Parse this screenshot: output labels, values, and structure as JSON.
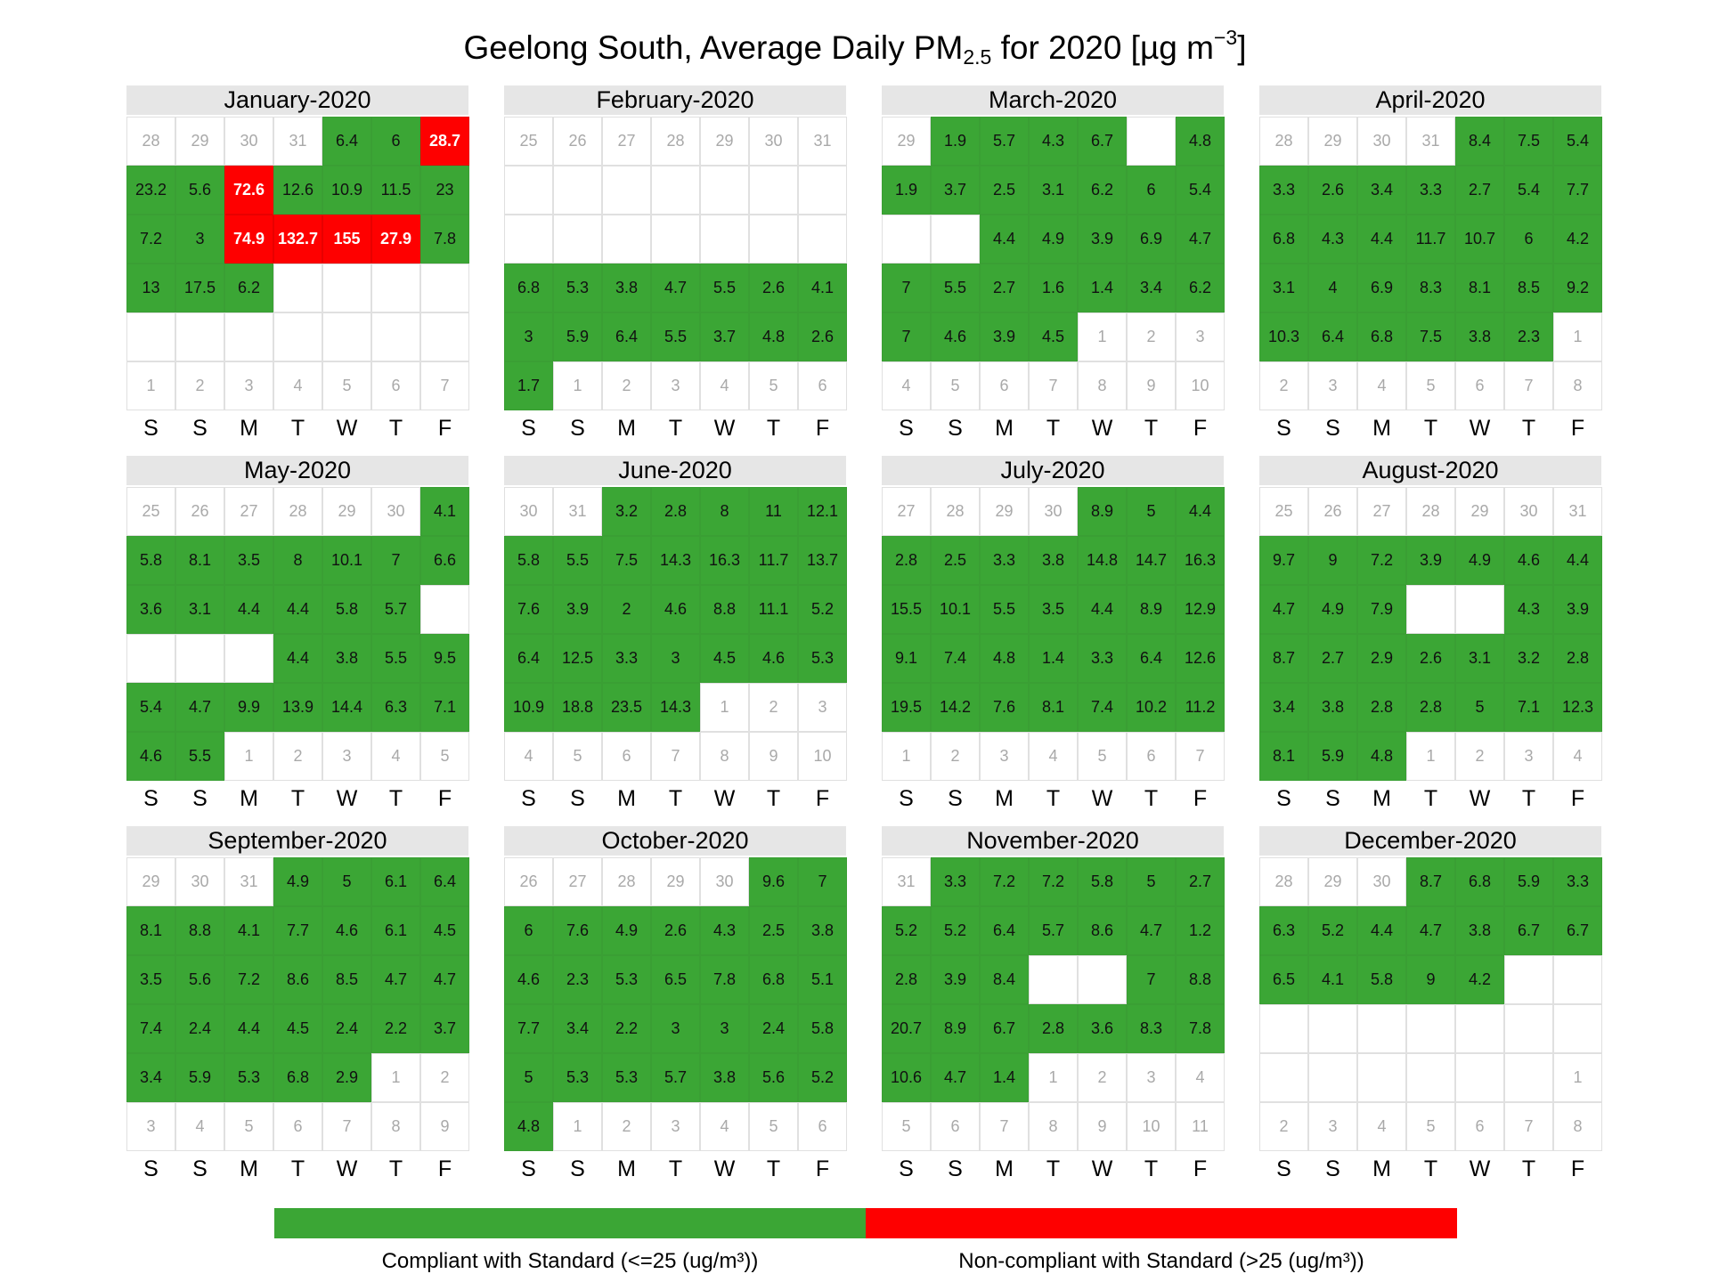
{
  "chart_data": {
    "type": "heatmap",
    "title": "Geelong South, Average Daily PM",
    "title_sub": "2.5",
    "title_mid": " for 2020 [µg m",
    "title_sup": "−3",
    "title_end": "]",
    "weekdays": [
      "S",
      "S",
      "M",
      "T",
      "W",
      "T",
      "F"
    ],
    "legend": {
      "compliant_label": "Compliant with Standard (<=25 (ug/m³))",
      "noncompliant_label": "Non-compliant with Standard (>25 (ug/m³))",
      "compliant_color": "#3ba635",
      "noncompliant_color": "#fe0000",
      "threshold": 25
    },
    "months": [
      {
        "name": "January-2020",
        "lead_days": [
          28,
          29,
          30,
          31
        ],
        "values": [
          6.4,
          6,
          28.7,
          23.2,
          5.6,
          72.6,
          12.6,
          10.9,
          11.5,
          23,
          7.2,
          3,
          74.9,
          132.7,
          155,
          27.9,
          7.8,
          13,
          17.5,
          6.2,
          null,
          null,
          null,
          null,
          null,
          null,
          null,
          null,
          null,
          null,
          null
        ],
        "trail_days": [
          1,
          2,
          3,
          4,
          5,
          6,
          7
        ]
      },
      {
        "name": "February-2020",
        "lead_days": [
          25,
          26,
          27,
          28,
          29,
          30,
          31
        ],
        "values": [
          null,
          null,
          null,
          null,
          null,
          null,
          null,
          null,
          null,
          null,
          null,
          null,
          null,
          null,
          6.8,
          5.3,
          3.8,
          4.7,
          5.5,
          2.6,
          4.1,
          3,
          5.9,
          6.4,
          5.5,
          3.7,
          4.8,
          2.6,
          1.7
        ],
        "trail_days": [
          1,
          2,
          3,
          4,
          5,
          6
        ]
      },
      {
        "name": "March-2020",
        "lead_days": [
          29
        ],
        "values": [
          1.9,
          5.7,
          4.3,
          6.7,
          null,
          4.8,
          1.9,
          3.7,
          2.5,
          3.1,
          6.2,
          6,
          5.4,
          null,
          null,
          4.4,
          4.9,
          3.9,
          6.9,
          4.7,
          7,
          5.5,
          2.7,
          1.6,
          1.4,
          3.4,
          6.2,
          7,
          4.6,
          3.9,
          4.5
        ],
        "trail_days": [
          1,
          2,
          3,
          4,
          5,
          6,
          7,
          8,
          9,
          10
        ]
      },
      {
        "name": "April-2020",
        "lead_days": [
          28,
          29,
          30,
          31
        ],
        "values": [
          8.4,
          7.5,
          5.4,
          3.3,
          2.6,
          3.4,
          3.3,
          2.7,
          5.4,
          7.7,
          6.8,
          4.3,
          4.4,
          11.7,
          10.7,
          6,
          4.2,
          3.1,
          4,
          6.9,
          8.3,
          8.1,
          8.5,
          9.2,
          10.3,
          6.4,
          6.8,
          7.5,
          3.8,
          2.3
        ],
        "trail_days": [
          1,
          2,
          3,
          4,
          5,
          6,
          7,
          8
        ]
      },
      {
        "name": "May-2020",
        "lead_days": [
          25,
          26,
          27,
          28,
          29,
          30
        ],
        "values": [
          4.1,
          5.8,
          8.1,
          3.5,
          8,
          10.1,
          7,
          6.6,
          3.6,
          3.1,
          4.4,
          4.4,
          5.8,
          5.7,
          null,
          null,
          null,
          null,
          4.4,
          3.8,
          5.5,
          9.5,
          5.4,
          4.7,
          9.9,
          13.9,
          14.4,
          6.3,
          7.1,
          4.6,
          5.5
        ],
        "trail_days": [
          1,
          2,
          3,
          4,
          5
        ]
      },
      {
        "name": "June-2020",
        "lead_days": [
          30,
          31
        ],
        "values": [
          3.2,
          2.8,
          8,
          11,
          12.1,
          5.8,
          5.5,
          7.5,
          14.3,
          16.3,
          11.7,
          13.7,
          7.6,
          3.9,
          2,
          4.6,
          8.8,
          11.1,
          5.2,
          6.4,
          12.5,
          3.3,
          3,
          4.5,
          4.6,
          5.3,
          10.9,
          18.8,
          23.5,
          14.3
        ],
        "trail_days": [
          1,
          2,
          3,
          4,
          5,
          6,
          7,
          8,
          9,
          10
        ]
      },
      {
        "name": "July-2020",
        "lead_days": [
          27,
          28,
          29,
          30
        ],
        "values": [
          8.9,
          5,
          4.4,
          2.8,
          2.5,
          3.3,
          3.8,
          14.8,
          14.7,
          16.3,
          15.5,
          10.1,
          5.5,
          3.5,
          4.4,
          8.9,
          12.9,
          9.1,
          7.4,
          4.8,
          1.4,
          3.3,
          6.4,
          12.6,
          19.5,
          14.2,
          7.6,
          8.1,
          7.4,
          10.2,
          11.2
        ],
        "trail_days": [
          1,
          2,
          3,
          4,
          5,
          6,
          7
        ]
      },
      {
        "name": "August-2020",
        "lead_days": [
          25,
          26,
          27,
          28,
          29,
          30,
          31
        ],
        "values": [
          9.7,
          9,
          7.2,
          3.9,
          4.9,
          4.6,
          4.4,
          4.7,
          4.9,
          7.9,
          null,
          null,
          4.3,
          3.9,
          8.7,
          2.7,
          2.9,
          2.6,
          3.1,
          3.2,
          2.8,
          3.4,
          3.8,
          2.8,
          2.8,
          5,
          7.1,
          12.3,
          8.1,
          5.9,
          4.8
        ],
        "trail_days": [
          1,
          2,
          3,
          4
        ]
      },
      {
        "name": "September-2020",
        "lead_days": [
          29,
          30,
          31
        ],
        "values": [
          4.9,
          5,
          6.1,
          6.4,
          8.1,
          8.8,
          4.1,
          7.7,
          4.6,
          6.1,
          4.5,
          3.5,
          5.6,
          7.2,
          8.6,
          8.5,
          4.7,
          4.7,
          7.4,
          2.4,
          4.4,
          4.5,
          2.4,
          2.2,
          3.7,
          3.4,
          5.9,
          5.3,
          6.8,
          2.9
        ],
        "trail_days": [
          1,
          2,
          3,
          4,
          5,
          6,
          7,
          8,
          9
        ]
      },
      {
        "name": "October-2020",
        "lead_days": [
          26,
          27,
          28,
          29,
          30
        ],
        "values": [
          9.6,
          7,
          6,
          7.6,
          4.9,
          2.6,
          4.3,
          2.5,
          3.8,
          4.6,
          2.3,
          5.3,
          6.5,
          7.8,
          6.8,
          5.1,
          7.7,
          3.4,
          2.2,
          3,
          3,
          2.4,
          5.8,
          5,
          5.3,
          5.3,
          5.7,
          3.8,
          5.6,
          5.2,
          4.8
        ],
        "trail_days": [
          1,
          2,
          3,
          4,
          5,
          6
        ]
      },
      {
        "name": "November-2020",
        "lead_days": [
          31
        ],
        "values": [
          3.3,
          7.2,
          7.2,
          5.8,
          5,
          2.7,
          5.2,
          5.2,
          6.4,
          5.7,
          8.6,
          4.7,
          1.2,
          2.8,
          3.9,
          8.4,
          null,
          null,
          7,
          8.8,
          20.7,
          8.9,
          6.7,
          2.8,
          3.6,
          8.3,
          7.8,
          10.6,
          4.7,
          1.4
        ],
        "trail_days": [
          1,
          2,
          3,
          4,
          5,
          6,
          7,
          8,
          9,
          10,
          11
        ]
      },
      {
        "name": "December-2020",
        "lead_days": [
          28,
          29,
          30
        ],
        "values": [
          8.7,
          6.8,
          5.9,
          3.3,
          6.3,
          5.2,
          4.4,
          4.7,
          3.8,
          6.7,
          6.7,
          6.5,
          4.1,
          5.8,
          9,
          4.2,
          null,
          null,
          null,
          null,
          null,
          null,
          null,
          null,
          null,
          null,
          null,
          null,
          null,
          null,
          null
        ],
        "trail_days": [
          1,
          2,
          3,
          4,
          5,
          6,
          7,
          8
        ]
      }
    ]
  }
}
